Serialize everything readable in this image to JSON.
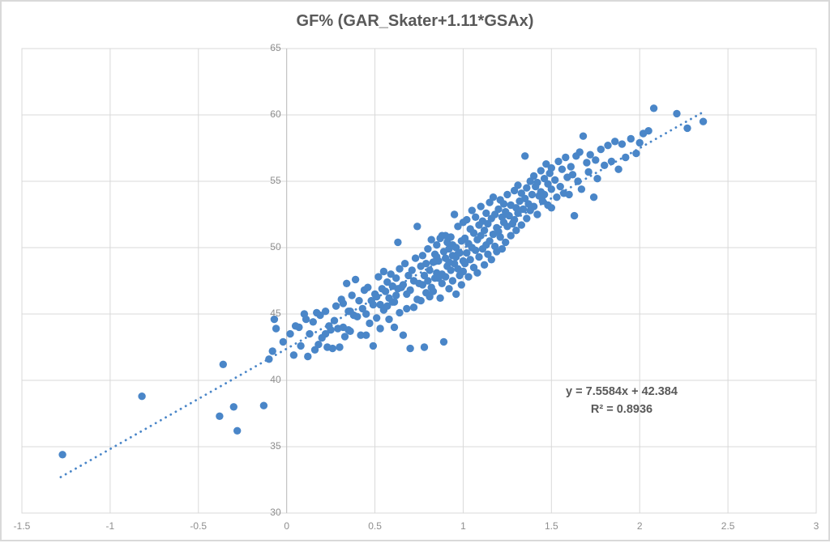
{
  "title": "GF% (GAR_Skater+1.11*GSAx)",
  "colors": {
    "marker": "#4a86c8",
    "trendline": "#4a86c8",
    "gridline": "#d9d9d9",
    "axis_line": "#bfbfbf",
    "frame_border": "#d9d9d9",
    "title_text": "#595959",
    "tick_text": "#8e8e8e",
    "annotation_text": "#595959"
  },
  "chart_data": {
    "type": "scatter",
    "title": "GF% (GAR_Skater+1.11*GSAx)",
    "xlabel": "",
    "ylabel": "",
    "xlim": [
      -1.5,
      3
    ],
    "ylim": [
      30,
      65
    ],
    "x_ticks": [
      -1.5,
      -1,
      -0.5,
      0,
      0.5,
      1,
      1.5,
      2,
      2.5,
      3
    ],
    "x_tick_labels": [
      "-1.5",
      "-1",
      "-0.5",
      "0",
      "0.5",
      "1",
      "1.5",
      "2",
      "2.5",
      "3"
    ],
    "y_ticks": [
      30,
      35,
      40,
      45,
      50,
      55,
      60,
      65
    ],
    "y_tick_labels": [
      "30",
      "35",
      "40",
      "45",
      "50",
      "55",
      "60",
      "65"
    ],
    "grid": true,
    "legend": false,
    "marker_color": "#4a86c8",
    "trendline": {
      "slope": 7.5584,
      "intercept": 42.384,
      "x_start": -1.28,
      "x_end": 2.36,
      "style": "dotted",
      "color": "#4a86c8"
    },
    "annotation": {
      "line1": "y = 7.5584x + 42.384",
      "line2": "R² = 0.8936"
    },
    "points": [
      [
        -1.27,
        34.4
      ],
      [
        -0.82,
        38.8
      ],
      [
        -0.38,
        37.3
      ],
      [
        -0.36,
        41.2
      ],
      [
        -0.3,
        38.0
      ],
      [
        -0.28,
        36.2
      ],
      [
        -0.13,
        38.1
      ],
      [
        -0.08,
        42.2
      ],
      [
        -0.07,
        44.6
      ],
      [
        -0.06,
        43.9
      ],
      [
        -0.1,
        41.6
      ],
      [
        -0.02,
        42.9
      ],
      [
        0.02,
        43.5
      ],
      [
        0.04,
        41.9
      ],
      [
        0.05,
        44.1
      ],
      [
        0.07,
        44.0
      ],
      [
        0.08,
        42.6
      ],
      [
        0.1,
        45.0
      ],
      [
        0.11,
        44.6
      ],
      [
        0.12,
        41.8
      ],
      [
        0.13,
        43.5
      ],
      [
        0.15,
        44.4
      ],
      [
        0.16,
        42.3
      ],
      [
        0.17,
        45.1
      ],
      [
        0.18,
        42.7
      ],
      [
        0.19,
        44.9
      ],
      [
        0.2,
        43.2
      ],
      [
        0.22,
        45.2
      ],
      [
        0.22,
        43.5
      ],
      [
        0.23,
        42.5
      ],
      [
        0.24,
        44.1
      ],
      [
        0.25,
        43.8
      ],
      [
        0.26,
        42.4
      ],
      [
        0.27,
        44.5
      ],
      [
        0.28,
        45.6
      ],
      [
        0.29,
        43.9
      ],
      [
        0.3,
        42.5
      ],
      [
        0.31,
        46.1
      ],
      [
        0.32,
        45.8
      ],
      [
        0.32,
        44.0
      ],
      [
        0.33,
        43.3
      ],
      [
        0.34,
        47.3
      ],
      [
        0.35,
        45.2
      ],
      [
        0.35,
        43.8
      ],
      [
        0.36,
        45.2
      ],
      [
        0.36,
        43.7
      ],
      [
        0.37,
        46.4
      ],
      [
        0.38,
        44.9
      ],
      [
        0.39,
        47.6
      ],
      [
        0.4,
        44.8
      ],
      [
        0.41,
        46.0
      ],
      [
        0.42,
        43.4
      ],
      [
        0.43,
        45.4
      ],
      [
        0.44,
        46.8
      ],
      [
        0.45,
        43.4
      ],
      [
        0.45,
        45.0
      ],
      [
        0.46,
        47.0
      ],
      [
        0.47,
        44.3
      ],
      [
        0.48,
        46.0
      ],
      [
        0.49,
        42.6
      ],
      [
        0.49,
        45.7
      ],
      [
        0.5,
        46.5
      ],
      [
        0.51,
        46.3
      ],
      [
        0.51,
        44.7
      ],
      [
        0.52,
        47.8
      ],
      [
        0.53,
        45.7
      ],
      [
        0.53,
        43.9
      ],
      [
        0.54,
        46.9
      ],
      [
        0.55,
        45.3
      ],
      [
        0.55,
        48.2
      ],
      [
        0.56,
        46.7
      ],
      [
        0.57,
        45.6
      ],
      [
        0.57,
        47.4
      ],
      [
        0.58,
        44.6
      ],
      [
        0.58,
        46.2
      ],
      [
        0.59,
        48.0
      ],
      [
        0.6,
        45.9
      ],
      [
        0.6,
        47.1
      ],
      [
        0.61,
        44.0
      ],
      [
        0.61,
        45.9
      ],
      [
        0.62,
        47.7
      ],
      [
        0.62,
        46.4
      ],
      [
        0.63,
        46.9
      ],
      [
        0.63,
        50.4
      ],
      [
        0.64,
        45.1
      ],
      [
        0.64,
        48.4
      ],
      [
        0.65,
        47.0
      ],
      [
        0.66,
        43.4
      ],
      [
        0.66,
        47.2
      ],
      [
        0.67,
        48.8
      ],
      [
        0.68,
        46.5
      ],
      [
        0.68,
        45.4
      ],
      [
        0.69,
        47.9
      ],
      [
        0.7,
        42.4
      ],
      [
        0.7,
        46.8
      ],
      [
        0.71,
        48.3
      ],
      [
        0.72,
        45.5
      ],
      [
        0.72,
        47.5
      ],
      [
        0.73,
        49.2
      ],
      [
        0.74,
        46.1
      ],
      [
        0.74,
        51.6
      ],
      [
        0.75,
        47.3
      ],
      [
        0.76,
        46.0
      ],
      [
        0.76,
        48.6
      ],
      [
        0.77,
        47.2
      ],
      [
        0.77,
        49.4
      ],
      [
        0.78,
        42.5
      ],
      [
        0.78,
        47.9
      ],
      [
        0.79,
        48.8
      ],
      [
        0.79,
        46.6
      ],
      [
        0.8,
        49.9
      ],
      [
        0.8,
        47.5
      ],
      [
        0.81,
        46.3
      ],
      [
        0.81,
        48.3
      ],
      [
        0.82,
        50.6
      ],
      [
        0.82,
        47.0
      ],
      [
        0.83,
        48.9
      ],
      [
        0.83,
        46.7
      ],
      [
        0.84,
        49.5
      ],
      [
        0.84,
        47.7
      ],
      [
        0.85,
        50.2
      ],
      [
        0.85,
        48.1
      ],
      [
        0.85,
        49.3
      ],
      [
        0.86,
        47.7
      ],
      [
        0.86,
        49.0
      ],
      [
        0.87,
        46.2
      ],
      [
        0.87,
        50.7
      ],
      [
        0.88,
        50.9
      ],
      [
        0.88,
        47.3
      ],
      [
        0.88,
        48.0
      ],
      [
        0.89,
        42.9
      ],
      [
        0.89,
        49.7
      ],
      [
        0.9,
        49.2
      ],
      [
        0.9,
        47.8
      ],
      [
        0.9,
        50.9
      ],
      [
        0.91,
        50.4
      ],
      [
        0.91,
        48.6
      ],
      [
        0.92,
        46.9
      ],
      [
        0.92,
        49.9
      ],
      [
        0.92,
        48.9
      ],
      [
        0.93,
        48.3
      ],
      [
        0.93,
        50.8
      ],
      [
        0.94,
        47.5
      ],
      [
        0.94,
        49.4
      ],
      [
        0.94,
        50.2
      ],
      [
        0.95,
        52.5
      ],
      [
        0.95,
        48.8
      ],
      [
        0.96,
        46.5
      ],
      [
        0.96,
        50.0
      ],
      [
        0.96,
        49.3
      ],
      [
        0.97,
        48.4
      ],
      [
        0.97,
        51.6
      ],
      [
        0.98,
        49.6
      ],
      [
        0.98,
        47.9
      ],
      [
        0.99,
        47.2
      ],
      [
        0.99,
        50.5
      ],
      [
        1.0,
        49.0
      ],
      [
        1.0,
        51.9
      ],
      [
        1.0,
        48.2
      ],
      [
        1.01,
        50.7
      ],
      [
        1.01,
        48.8
      ],
      [
        1.02,
        52.1
      ],
      [
        1.02,
        49.6
      ],
      [
        1.03,
        47.8
      ],
      [
        1.03,
        50.3
      ],
      [
        1.04,
        51.4
      ],
      [
        1.04,
        49.1
      ],
      [
        1.05,
        52.8
      ],
      [
        1.05,
        50.0
      ],
      [
        1.06,
        48.5
      ],
      [
        1.06,
        51.1
      ],
      [
        1.07,
        49.8
      ],
      [
        1.07,
        52.3
      ],
      [
        1.08,
        50.6
      ],
      [
        1.08,
        48.1
      ],
      [
        1.09,
        51.7
      ],
      [
        1.09,
        49.3
      ],
      [
        1.1,
        53.1
      ],
      [
        1.1,
        50.9
      ],
      [
        1.11,
        49.9
      ],
      [
        1.11,
        52.0
      ],
      [
        1.12,
        48.7
      ],
      [
        1.12,
        51.3
      ],
      [
        1.13,
        50.2
      ],
      [
        1.13,
        52.6
      ],
      [
        1.14,
        49.5
      ],
      [
        1.14,
        51.8
      ],
      [
        1.15,
        53.4
      ],
      [
        1.15,
        50.5
      ],
      [
        1.16,
        49.1
      ],
      [
        1.16,
        52.2
      ],
      [
        1.17,
        51.0
      ],
      [
        1.17,
        53.8
      ],
      [
        1.18,
        50.1
      ],
      [
        1.18,
        52.5
      ],
      [
        1.19,
        51.5
      ],
      [
        1.19,
        49.7
      ],
      [
        1.2,
        52.9
      ],
      [
        1.2,
        51.2
      ],
      [
        1.21,
        53.6
      ],
      [
        1.21,
        50.8
      ],
      [
        1.22,
        52.3
      ],
      [
        1.22,
        49.9
      ],
      [
        1.23,
        51.9
      ],
      [
        1.23,
        53.3
      ],
      [
        1.24,
        52.7
      ],
      [
        1.24,
        50.4
      ],
      [
        1.25,
        54.0
      ],
      [
        1.25,
        51.6
      ],
      [
        1.26,
        52.4
      ],
      [
        1.27,
        50.9
      ],
      [
        1.27,
        53.2
      ],
      [
        1.28,
        51.8
      ],
      [
        1.29,
        54.3
      ],
      [
        1.29,
        52.1
      ],
      [
        1.3,
        53.0
      ],
      [
        1.3,
        51.3
      ],
      [
        1.31,
        54.7
      ],
      [
        1.31,
        52.6
      ],
      [
        1.32,
        53.5
      ],
      [
        1.33,
        51.7
      ],
      [
        1.33,
        54.1
      ],
      [
        1.34,
        52.9
      ],
      [
        1.35,
        56.9
      ],
      [
        1.35,
        53.7
      ],
      [
        1.36,
        52.2
      ],
      [
        1.36,
        54.5
      ],
      [
        1.37,
        53.3
      ],
      [
        1.38,
        55.0
      ],
      [
        1.38,
        52.8
      ],
      [
        1.39,
        54.0
      ],
      [
        1.4,
        53.1
      ],
      [
        1.4,
        55.4
      ],
      [
        1.41,
        54.6
      ],
      [
        1.42,
        52.5
      ],
      [
        1.42,
        54.9
      ],
      [
        1.43,
        53.9
      ],
      [
        1.44,
        55.8
      ],
      [
        1.44,
        54.2
      ],
      [
        1.45,
        53.5
      ],
      [
        1.46,
        55.2
      ],
      [
        1.46,
        54.0
      ],
      [
        1.47,
        56.3
      ],
      [
        1.48,
        54.8
      ],
      [
        1.48,
        53.2
      ],
      [
        1.49,
        55.6
      ],
      [
        1.5,
        54.4
      ],
      [
        1.5,
        56.0
      ],
      [
        1.5,
        53.0
      ],
      [
        1.52,
        55.1
      ],
      [
        1.53,
        53.8
      ],
      [
        1.54,
        56.5
      ],
      [
        1.55,
        54.6
      ],
      [
        1.56,
        55.9
      ],
      [
        1.57,
        54.1
      ],
      [
        1.58,
        56.8
      ],
      [
        1.59,
        55.3
      ],
      [
        1.6,
        54.0
      ],
      [
        1.61,
        56.1
      ],
      [
        1.62,
        55.5
      ],
      [
        1.63,
        52.4
      ],
      [
        1.64,
        56.9
      ],
      [
        1.65,
        55.0
      ],
      [
        1.66,
        57.2
      ],
      [
        1.67,
        54.4
      ],
      [
        1.68,
        58.4
      ],
      [
        1.7,
        56.4
      ],
      [
        1.71,
        55.7
      ],
      [
        1.72,
        57.0
      ],
      [
        1.74,
        53.8
      ],
      [
        1.75,
        56.6
      ],
      [
        1.76,
        55.2
      ],
      [
        1.78,
        57.4
      ],
      [
        1.8,
        56.2
      ],
      [
        1.82,
        57.7
      ],
      [
        1.84,
        56.5
      ],
      [
        1.86,
        58.0
      ],
      [
        1.88,
        55.9
      ],
      [
        1.9,
        57.8
      ],
      [
        1.92,
        56.8
      ],
      [
        1.95,
        58.2
      ],
      [
        1.98,
        57.1
      ],
      [
        2.0,
        57.9
      ],
      [
        2.02,
        58.6
      ],
      [
        2.05,
        58.8
      ],
      [
        2.08,
        60.5
      ],
      [
        2.21,
        60.1
      ],
      [
        2.27,
        59.0
      ],
      [
        2.36,
        59.5
      ]
    ]
  }
}
